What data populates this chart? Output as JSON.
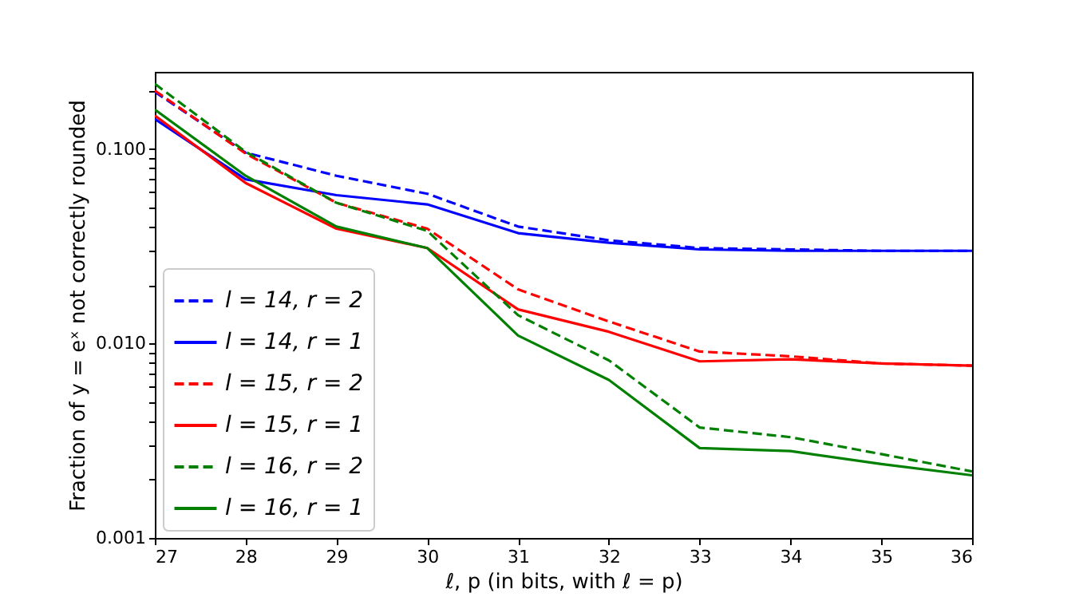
{
  "chart_data": {
    "type": "line",
    "xlabel": "ℓ, p (in bits, with ℓ = p)",
    "ylabel": "Fraction of y = eˣ not correctly rounded",
    "x": [
      27,
      28,
      29,
      30,
      31,
      32,
      33,
      34,
      35,
      36
    ],
    "series": [
      {
        "name": "l = 14, r = 2",
        "color": "#0000ff",
        "line_style": "dashed",
        "values": [
          0.197,
          0.096,
          0.073,
          0.059,
          0.04,
          0.034,
          0.031,
          0.0305,
          0.03,
          0.03
        ]
      },
      {
        "name": "l = 14, r = 1",
        "color": "#0000ff",
        "line_style": "solid",
        "values": [
          0.143,
          0.07,
          0.058,
          0.052,
          0.037,
          0.033,
          0.0305,
          0.03,
          0.03,
          0.03
        ]
      },
      {
        "name": "l = 15, r = 2",
        "color": "#ff0000",
        "line_style": "dashed",
        "values": [
          0.2,
          0.095,
          0.053,
          0.039,
          0.019,
          0.013,
          0.0091,
          0.0086,
          0.0079,
          0.0077
        ]
      },
      {
        "name": "l = 15, r = 1",
        "color": "#ff0000",
        "line_style": "solid",
        "values": [
          0.149,
          0.067,
          0.039,
          0.031,
          0.015,
          0.0115,
          0.0081,
          0.0083,
          0.0079,
          0.0077
        ]
      },
      {
        "name": "l = 16, r = 2",
        "color": "#008000",
        "line_style": "dashed",
        "values": [
          0.217,
          0.097,
          0.053,
          0.038,
          0.014,
          0.0082,
          0.0037,
          0.0033,
          0.0027,
          0.0022
        ]
      },
      {
        "name": "l = 16, r = 1",
        "color": "#008000",
        "line_style": "solid",
        "values": [
          0.16,
          0.073,
          0.04,
          0.031,
          0.011,
          0.0065,
          0.0029,
          0.0028,
          0.0024,
          0.0021
        ]
      }
    ],
    "xlim": [
      27,
      36
    ],
    "xticks": [
      27,
      28,
      29,
      30,
      31,
      32,
      33,
      34,
      35,
      36
    ],
    "ylim": [
      0.001,
      0.25
    ],
    "log": true,
    "yticks": [
      {
        "value": 0.001,
        "label": "0.001"
      },
      {
        "value": 0.002,
        "label": null
      },
      {
        "value": 0.003,
        "label": null
      },
      {
        "value": 0.004,
        "label": null
      },
      {
        "value": 0.005,
        "label": null
      },
      {
        "value": 0.006,
        "label": null
      },
      {
        "value": 0.007,
        "label": null
      },
      {
        "value": 0.008,
        "label": null
      },
      {
        "value": 0.009,
        "label": null
      },
      {
        "value": 0.01,
        "label": "0.010"
      },
      {
        "value": 0.02,
        "label": null
      },
      {
        "value": 0.03,
        "label": null
      },
      {
        "value": 0.04,
        "label": null
      },
      {
        "value": 0.05,
        "label": null
      },
      {
        "value": 0.06,
        "label": null
      },
      {
        "value": 0.07,
        "label": null
      },
      {
        "value": 0.08,
        "label": null
      },
      {
        "value": 0.09,
        "label": null
      },
      {
        "value": 0.1,
        "label": "0.100"
      },
      {
        "value": 0.2,
        "label": null
      }
    ],
    "legend": "bottom left"
  }
}
